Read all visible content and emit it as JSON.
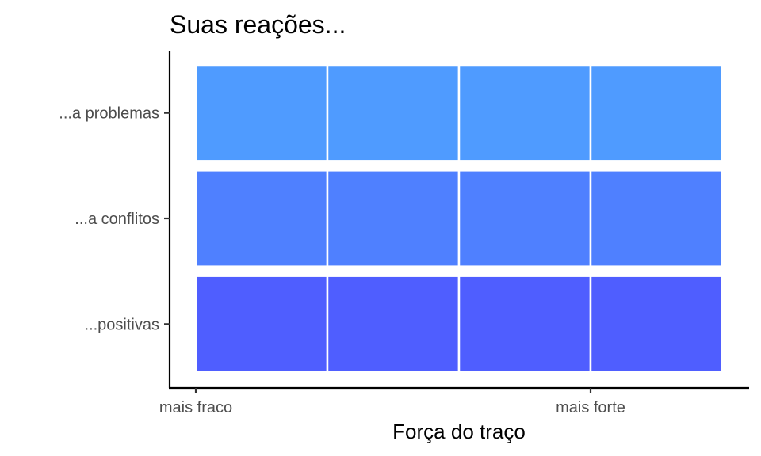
{
  "chart_data": {
    "type": "heatmap",
    "title": "Suas reações...",
    "xlabel": "Força do traço",
    "ylabel": "",
    "x_tick_labels": [
      "mais fraco",
      "mais forte"
    ],
    "rows": [
      "...a problemas",
      "...a conflitos",
      "...positivas"
    ],
    "columns_per_row": 4,
    "row_colors": [
      "#4f9bff",
      "#4f80ff",
      "#4f5eff"
    ],
    "grid": false,
    "legend": "none"
  }
}
